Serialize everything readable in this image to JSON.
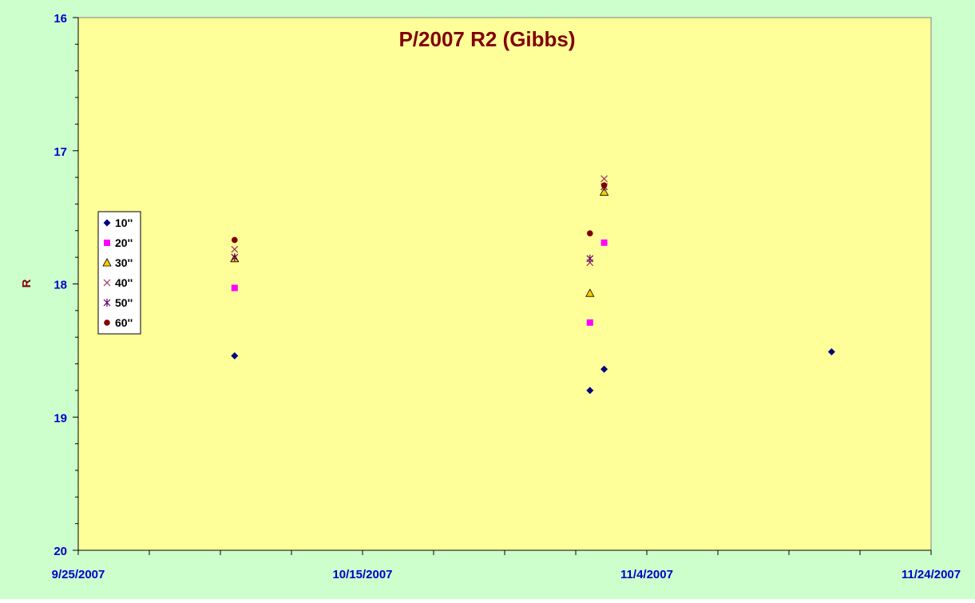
{
  "chart_data": {
    "type": "scatter",
    "title": "P/2007 R2 (Gibbs)",
    "xlabel": "",
    "ylabel": "R",
    "x_range": [
      "9/25/2007",
      "11/24/2007"
    ],
    "x_tick_labels": [
      "9/25/2007",
      "10/15/2007",
      "11/4/2007",
      "11/24/2007"
    ],
    "ylim": [
      16,
      20
    ],
    "y_inverted": true,
    "y_tick_labels": [
      "16",
      "17",
      "18",
      "19",
      "20"
    ],
    "legend_position": "left",
    "colors": {
      "outer_background": "#ccffcc",
      "plot_background": "#ffff99",
      "title": "#800000",
      "ylabel": "#800000",
      "tick_labels": "#0000cc"
    },
    "series": [
      {
        "name": "10''",
        "marker": "diamond",
        "color": "#000080",
        "points": [
          [
            "10/6/2007",
            18.54
          ],
          [
            "10/31/2007",
            18.8
          ],
          [
            "11/1/2007",
            18.64
          ],
          [
            "11/17/2007",
            18.51
          ]
        ]
      },
      {
        "name": "20''",
        "marker": "square",
        "color": "#ff00ff",
        "points": [
          [
            "10/6/2007",
            18.03
          ],
          [
            "10/31/2007",
            18.29
          ],
          [
            "11/1/2007",
            17.69
          ]
        ]
      },
      {
        "name": "30''",
        "marker": "triangle",
        "color": "#ffcc00",
        "points": [
          [
            "10/6/2007",
            17.81
          ],
          [
            "10/31/2007",
            18.07
          ],
          [
            "11/1/2007",
            17.31
          ]
        ]
      },
      {
        "name": "40''",
        "marker": "x",
        "color": "#993366",
        "points": [
          [
            "10/6/2007",
            17.74
          ],
          [
            "10/31/2007",
            17.84
          ],
          [
            "11/1/2007",
            17.21
          ]
        ]
      },
      {
        "name": "50''",
        "marker": "star",
        "color": "#660066",
        "points": [
          [
            "10/6/2007",
            17.8
          ],
          [
            "10/31/2007",
            17.81
          ],
          [
            "11/1/2007",
            17.27
          ]
        ]
      },
      {
        "name": "60''",
        "marker": "circle",
        "color": "#800000",
        "points": [
          [
            "10/6/2007",
            17.67
          ],
          [
            "10/31/2007",
            17.62
          ],
          [
            "11/1/2007",
            17.26
          ]
        ]
      }
    ]
  }
}
